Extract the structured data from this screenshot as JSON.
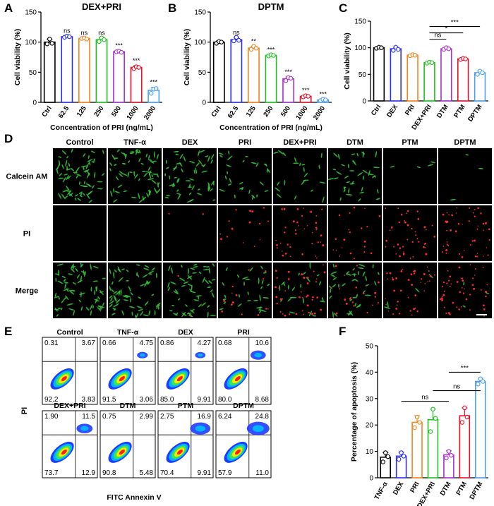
{
  "panel_letters": {
    "A": "A",
    "B": "B",
    "C": "C",
    "D": "D",
    "E": "E",
    "F": "F"
  },
  "chart_data": [
    {
      "id": "A",
      "type": "bar",
      "title": "DEX+PRI",
      "xlabel": "Concentration of PRI (ng/mL)",
      "ylabel": "Cell viability (%)",
      "categories": [
        "Ctrl",
        "62.5",
        "125",
        "250",
        "500",
        "1000",
        "2000"
      ],
      "values": [
        100,
        109,
        106,
        104,
        84,
        58,
        20
      ],
      "errors": [
        5,
        2,
        1,
        3,
        2,
        3,
        5
      ],
      "points": [
        [
          97,
          105,
          98
        ],
        [
          108,
          110,
          109
        ],
        [
          106,
          107,
          105
        ],
        [
          101,
          107,
          104
        ],
        [
          84,
          85,
          83
        ],
        [
          56,
          59,
          58
        ],
        [
          15,
          22,
          23
        ]
      ],
      "significance": [
        "",
        "ns",
        "ns",
        "ns",
        "***",
        "***",
        "***"
      ],
      "colors": [
        "#000000",
        "#2b2ff2",
        "#f4841c",
        "#1ec21e",
        "#a92fd0",
        "#e8102a",
        "#4ea0ee"
      ],
      "ylim": [
        0,
        150
      ],
      "yticks": [
        0,
        50,
        100,
        150
      ]
    },
    {
      "id": "B",
      "type": "bar",
      "title": "DPTM",
      "xlabel": "Concentration of PRI (ng/mL)",
      "ylabel": "Cell viability (%)",
      "categories": [
        "Ctrl",
        "62.5",
        "125",
        "250",
        "500",
        "1000",
        "2000"
      ],
      "values": [
        100,
        104,
        90,
        78,
        39,
        10,
        4
      ],
      "errors": [
        2,
        4,
        3,
        1,
        3,
        2,
        1
      ],
      "points": [
        [
          98,
          101,
          100
        ],
        [
          102,
          108,
          103
        ],
        [
          88,
          93,
          90
        ],
        [
          77,
          79,
          78
        ],
        [
          36,
          41,
          40
        ],
        [
          9,
          11,
          10
        ],
        [
          3,
          5,
          4
        ]
      ],
      "significance": [
        "",
        "ns",
        "**",
        "***",
        "***",
        "***",
        "***"
      ],
      "colors": [
        "#000000",
        "#2b2ff2",
        "#f4841c",
        "#1ec21e",
        "#a92fd0",
        "#e8102a",
        "#4ea0ee"
      ],
      "ylim": [
        0,
        150
      ],
      "yticks": [
        0,
        50,
        100,
        150
      ]
    },
    {
      "id": "C",
      "type": "bar",
      "ylabel": "Cell viability (%)",
      "categories": [
        "Ctrl",
        "DEX",
        "PRI",
        "DEX+PRI",
        "DTM",
        "PTM",
        "DPTM"
      ],
      "values": [
        100,
        98,
        86,
        72,
        98,
        79,
        53
      ],
      "errors": [
        2,
        3,
        2,
        2,
        2,
        2,
        3
      ],
      "points": [
        [
          99,
          101,
          100
        ],
        [
          95,
          101,
          97
        ],
        [
          85,
          87,
          86
        ],
        [
          71,
          73,
          72
        ],
        [
          97,
          100,
          98
        ],
        [
          78,
          80,
          79
        ],
        [
          50,
          56,
          53
        ]
      ],
      "colors": [
        "#000000",
        "#2b2ff2",
        "#f4841c",
        "#1ec21e",
        "#a92fd0",
        "#e8102a",
        "#4ea0ee"
      ],
      "brackets": [
        {
          "label": "ns",
          "from": 3,
          "to": 4,
          "y": 116
        },
        {
          "label": "*",
          "from": 3,
          "to": 5,
          "y": 128
        },
        {
          "label": "***",
          "from": 3,
          "to": 6,
          "y": 140
        }
      ],
      "ylim": [
        0,
        150
      ],
      "yticks": [
        0,
        50,
        100,
        150
      ]
    },
    {
      "id": "F",
      "type": "bar",
      "ylabel": "Percentage of apoptosis (%)",
      "categories": [
        "TNF-α",
        "DEX",
        "PRI",
        "DEX+PRI",
        "DTM",
        "PTM",
        "DPTM"
      ],
      "values": [
        7.8,
        8.2,
        21.0,
        22.0,
        8.7,
        23.5,
        36.5
      ],
      "errors": [
        1.8,
        1.5,
        2.5,
        4.0,
        1.5,
        3.0,
        1.2
      ],
      "points": [
        [
          6.0,
          9.5,
          8.0
        ],
        [
          7.0,
          9.5,
          8.2
        ],
        [
          19.0,
          23.0,
          21.0
        ],
        [
          17.5,
          26.0,
          22.5
        ],
        [
          7.5,
          10.0,
          8.5
        ],
        [
          21.0,
          26.5,
          23.0
        ],
        [
          35.5,
          37.5,
          36.5
        ]
      ],
      "colors": [
        "#000000",
        "#2b2ff2",
        "#f4841c",
        "#1ec21e",
        "#a92fd0",
        "#e8102a",
        "#4ea0ee"
      ],
      "brackets": [
        {
          "label": "ns",
          "from": 1,
          "to": 4,
          "y": 29
        },
        {
          "label": "ns",
          "from": 3,
          "to": 6,
          "y": 33
        },
        {
          "label": "***",
          "from": 4,
          "to": 6,
          "y": 40
        }
      ],
      "ylim": [
        0,
        50
      ],
      "yticks": [
        0,
        10,
        20,
        30,
        40,
        50
      ]
    }
  ],
  "microscopy": {
    "columns": [
      "Control",
      "TNF-α",
      "DEX",
      "PRI",
      "DEX+PRI",
      "DTM",
      "PTM",
      "DPTM"
    ],
    "rows": [
      "Calcein AM",
      "PI",
      "Merge"
    ],
    "green_density": [
      1.0,
      0.95,
      0.8,
      0.4,
      0.3,
      0.55,
      0.06,
      0.04
    ],
    "red_density": [
      0.0,
      0.0,
      0.03,
      0.25,
      0.7,
      0.35,
      0.7,
      0.8
    ]
  },
  "flow": {
    "xlabel": "FITC Annexin V",
    "ylabel": "PI",
    "panels": [
      {
        "name": "Control",
        "ul": "0.31",
        "ur": "3.67",
        "ll": "92.2",
        "lr": "3.83"
      },
      {
        "name": "TNF-α",
        "ul": "0.66",
        "ur": "4.75",
        "ll": "91.5",
        "lr": "3.06"
      },
      {
        "name": "DEX",
        "ul": "0.86",
        "ur": "4.27",
        "ll": "85.0",
        "lr": "9.91"
      },
      {
        "name": "PRI",
        "ul": "0.68",
        "ur": "10.6",
        "ll": "80.0",
        "lr": "8.68"
      },
      {
        "name": "DEX+PRI",
        "ul": "1.90",
        "ur": "11.5",
        "ll": "73.7",
        "lr": "12.9"
      },
      {
        "name": "DTM",
        "ul": "0.75",
        "ur": "2.99",
        "ll": "90.8",
        "lr": "5.48"
      },
      {
        "name": "PTM",
        "ul": "2.75",
        "ur": "16.9",
        "ll": "70.4",
        "lr": "9.91"
      },
      {
        "name": "DPTM",
        "ul": "6.24",
        "ur": "24.8",
        "ll": "57.9",
        "lr": "11.0"
      }
    ]
  }
}
